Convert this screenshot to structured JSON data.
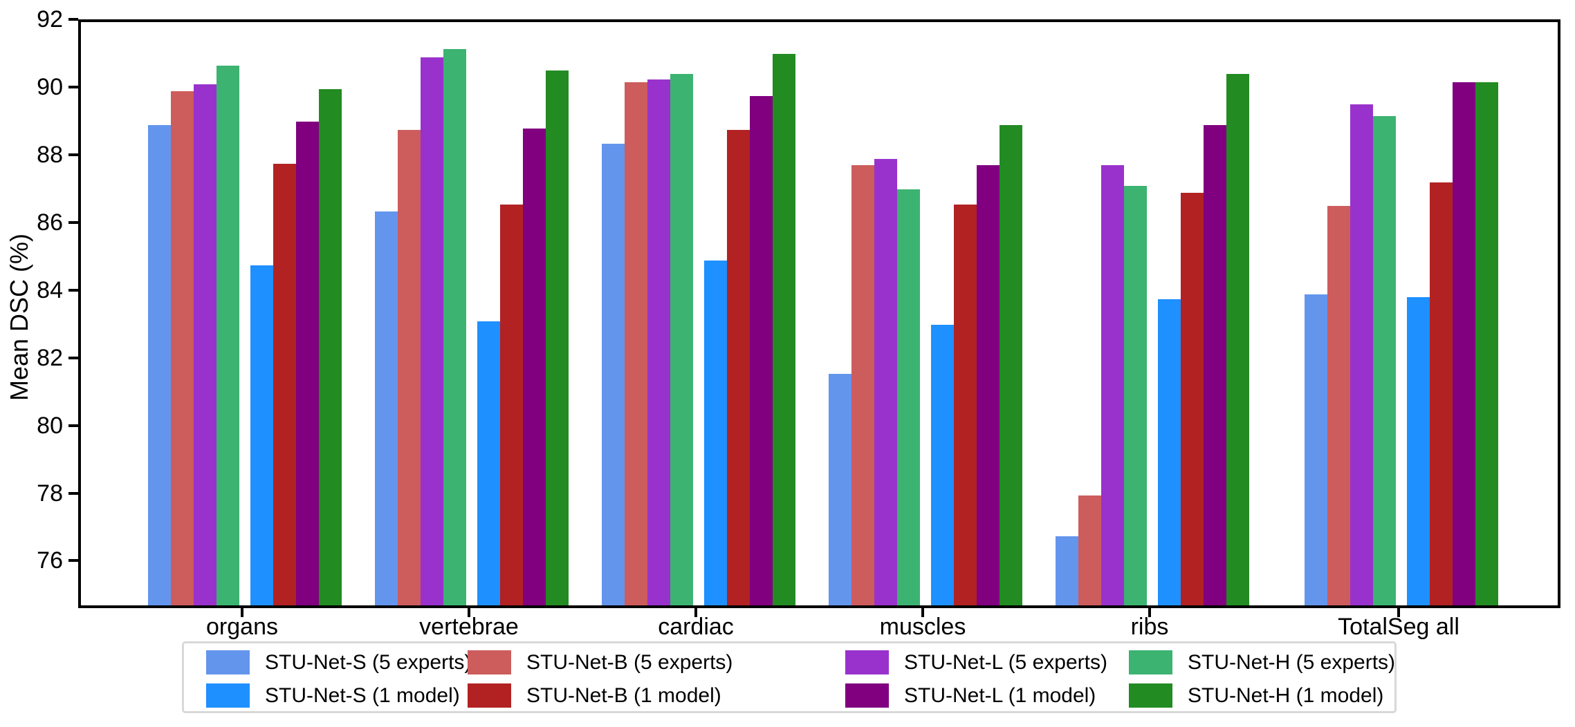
{
  "chart_data": {
    "type": "bar",
    "title": "",
    "xlabel": "",
    "ylabel": "Mean DSC (%)",
    "categories": [
      "organs",
      "vertebrae",
      "cardiac",
      "muscles",
      "ribs",
      "TotalSeg all"
    ],
    "series": [
      {
        "name": "STU-Net-S (5 experts)",
        "color": "#6495ED",
        "values": [
          88.8,
          86.25,
          88.25,
          81.45,
          76.65,
          83.8
        ]
      },
      {
        "name": "STU-Net-B (5 experts)",
        "color": "#CD5C5C",
        "values": [
          89.8,
          88.65,
          90.05,
          87.6,
          77.85,
          86.4
        ]
      },
      {
        "name": "STU-Net-L (5 experts)",
        "color": "#9932CC",
        "values": [
          90.0,
          90.8,
          90.15,
          87.8,
          87.6,
          89.4
        ]
      },
      {
        "name": "STU-Net-H (5 experts)",
        "color": "#3CB371",
        "values": [
          90.55,
          91.05,
          90.3,
          86.9,
          87.0,
          89.05
        ]
      },
      {
        "name": "STU-Net-S (1 model)",
        "color": "#1E90FF",
        "values": [
          84.65,
          83.0,
          84.8,
          82.9,
          83.65,
          83.7
        ]
      },
      {
        "name": "STU-Net-B (1 model)",
        "color": "#B22222",
        "values": [
          87.65,
          86.45,
          88.65,
          86.45,
          86.8,
          87.1
        ]
      },
      {
        "name": "STU-Net-L (1 model)",
        "color": "#800080",
        "values": [
          88.9,
          88.7,
          89.65,
          87.6,
          88.8,
          90.05
        ]
      },
      {
        "name": "STU-Net-H (1 model)",
        "color": "#228B22",
        "values": [
          89.85,
          90.4,
          90.9,
          88.8,
          90.3,
          90.05
        ]
      }
    ],
    "ylim": [
      74.6,
      92
    ],
    "yticks": [
      76,
      78,
      80,
      82,
      84,
      86,
      88,
      90,
      92
    ],
    "grid": false,
    "legend_position": "bottom",
    "legend_columns": 4,
    "axis_color": "#000000",
    "legend_border_color": "#d8d8d8"
  }
}
